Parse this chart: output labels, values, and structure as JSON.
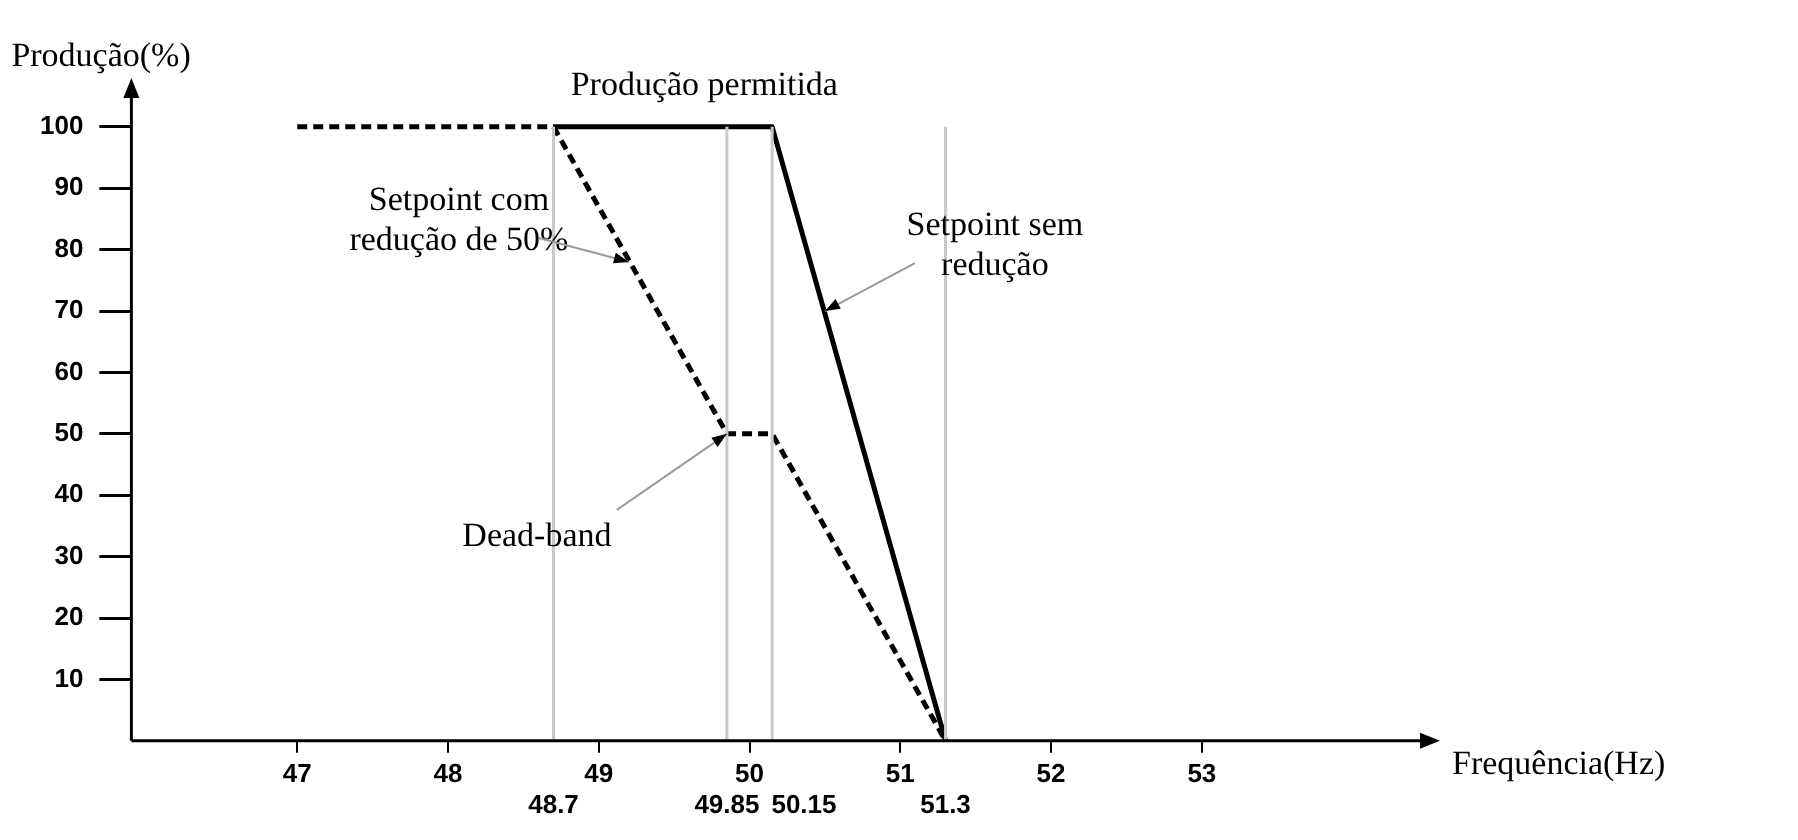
{
  "chart_data": {
    "type": "line",
    "xlabel": "Frequência(Hz)",
    "ylabel": "Produção(%)",
    "series": [
      {
        "color": "#000000",
        "line_style": "solid",
        "x": [
          48.7,
          50.15,
          51.3
        ],
        "values": [
          100,
          100,
          0
        ]
      },
      {
        "color": "#000000",
        "line_style": "dashed",
        "x": [
          47,
          48.7,
          49.85,
          50.15,
          51.3
        ],
        "values": [
          100,
          100,
          50,
          50,
          0
        ]
      }
    ],
    "xlim": [
      45.9,
      54.5
    ],
    "xticks": [
      47,
      48,
      49,
      50,
      51,
      52,
      53
    ],
    "ylim": [
      0,
      106
    ],
    "yticks": [
      10,
      20,
      30,
      40,
      50,
      60,
      70,
      80,
      90,
      100
    ],
    "ref_lines": [
      {
        "axis": "x",
        "value": 48.7,
        "label": "48.7",
        "color": "#c8c8c8"
      },
      {
        "axis": "x",
        "value": 49.85,
        "label": "49.85",
        "color": "#c8c8c8"
      },
      {
        "axis": "x",
        "value": 50.15,
        "label": "50.15",
        "color": "#c8c8c8"
      },
      {
        "axis": "x",
        "value": 51.3,
        "label": "51.3",
        "color": "#c8c8c8"
      }
    ],
    "annotations": [
      {
        "text": "Produção permitida",
        "x": 49.7,
        "y": 100
      },
      {
        "text": "Setpoint com redução de 50%",
        "x": 49.2,
        "y": 78
      },
      {
        "text": "Setpoint sem redução",
        "x": 50.5,
        "y": 70
      },
      {
        "text": "Dead-band",
        "x": 49.85,
        "y": 50
      }
    ],
    "grid": false,
    "legend": false,
    "marker": "none"
  }
}
